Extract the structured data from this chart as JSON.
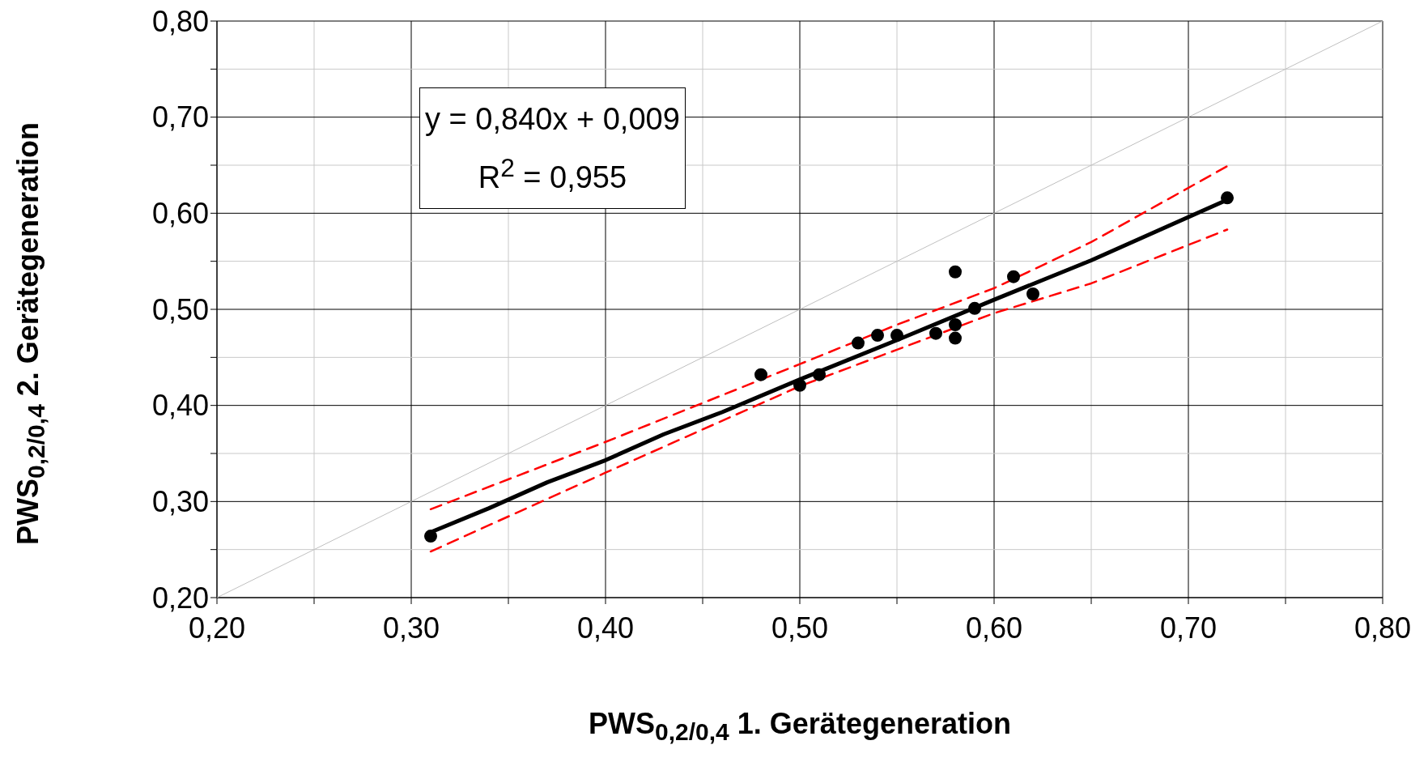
{
  "chart_data": {
    "type": "scatter",
    "xlabel": "PWS$_{0,2/0,4}$ 1. Gerätegeneration",
    "ylabel": "PWS$_{0,2/0,4}$ 2. Gerätegeneration",
    "annotations": [
      "y = 0,840x + 0,009",
      "R$^{2}$ = 0,955"
    ],
    "xlim": [
      0.2,
      0.8
    ],
    "ylim": [
      0.2,
      0.8
    ],
    "xticks": [
      {
        "value": 0.2,
        "label": "0,20"
      },
      {
        "value": 0.25,
        "label": null
      },
      {
        "value": 0.3,
        "label": "0,30"
      },
      {
        "value": 0.35,
        "label": null
      },
      {
        "value": 0.4,
        "label": "0,40"
      },
      {
        "value": 0.45,
        "label": null
      },
      {
        "value": 0.5,
        "label": "0,50"
      },
      {
        "value": 0.55,
        "label": null
      },
      {
        "value": 0.6,
        "label": "0,60"
      },
      {
        "value": 0.65,
        "label": null
      },
      {
        "value": 0.7,
        "label": "0,70"
      },
      {
        "value": 0.75,
        "label": null
      },
      {
        "value": 0.8,
        "label": "0,80"
      }
    ],
    "yticks": [
      {
        "value": 0.2,
        "label": "0,20"
      },
      {
        "value": 0.25,
        "label": null
      },
      {
        "value": 0.3,
        "label": "0,30"
      },
      {
        "value": 0.35,
        "label": null
      },
      {
        "value": 0.4,
        "label": "0,40"
      },
      {
        "value": 0.45,
        "label": null
      },
      {
        "value": 0.5,
        "label": "0,50"
      },
      {
        "value": 0.55,
        "label": null
      },
      {
        "value": 0.6,
        "label": "0,60"
      },
      {
        "value": 0.65,
        "label": null
      },
      {
        "value": 0.7,
        "label": "0,70"
      },
      {
        "value": 0.75,
        "label": null
      },
      {
        "value": 0.8,
        "label": "0,80"
      }
    ],
    "grid": true,
    "marker": "circle",
    "series": [
      {
        "type": "line",
        "color": "#c0c0c0",
        "line_style": "solid",
        "marker": "none",
        "x": [
          0.2,
          0.8
        ],
        "values": [
          0.2,
          0.8
        ]
      },
      {
        "type": "line",
        "color": "#ff0000",
        "line_style": "dashed",
        "marker": "none",
        "x": [
          0.31,
          0.4,
          0.5,
          0.55,
          0.6,
          0.65,
          0.72
        ],
        "values": [
          0.292,
          0.362,
          0.443,
          0.484,
          0.522,
          0.57,
          0.649
        ]
      },
      {
        "type": "line",
        "color": "#ff0000",
        "line_style": "dashed",
        "marker": "none",
        "x": [
          0.31,
          0.4,
          0.5,
          0.55,
          0.6,
          0.65,
          0.72
        ],
        "values": [
          0.248,
          0.33,
          0.42,
          0.458,
          0.496,
          0.527,
          0.583
        ]
      },
      {
        "type": "line",
        "color": "#000000",
        "line_style": "solid",
        "marker": "none",
        "x": [
          0.31,
          0.34,
          0.37,
          0.4,
          0.43,
          0.46,
          0.5,
          0.55,
          0.6,
          0.65,
          0.72
        ],
        "values": [
          0.268,
          0.293,
          0.32,
          0.343,
          0.37,
          0.393,
          0.427,
          0.468,
          0.51,
          0.551,
          0.614
        ]
      },
      {
        "color": "#000000",
        "x": [
          0.31,
          0.48,
          0.5,
          0.51,
          0.53,
          0.54,
          0.55,
          0.57,
          0.58,
          0.58,
          0.58,
          0.59,
          0.61,
          0.62,
          0.72
        ],
        "values": [
          0.264,
          0.432,
          0.421,
          0.432,
          0.465,
          0.473,
          0.473,
          0.475,
          0.539,
          0.484,
          0.47,
          0.501,
          0.534,
          0.516,
          0.616
        ]
      }
    ]
  }
}
